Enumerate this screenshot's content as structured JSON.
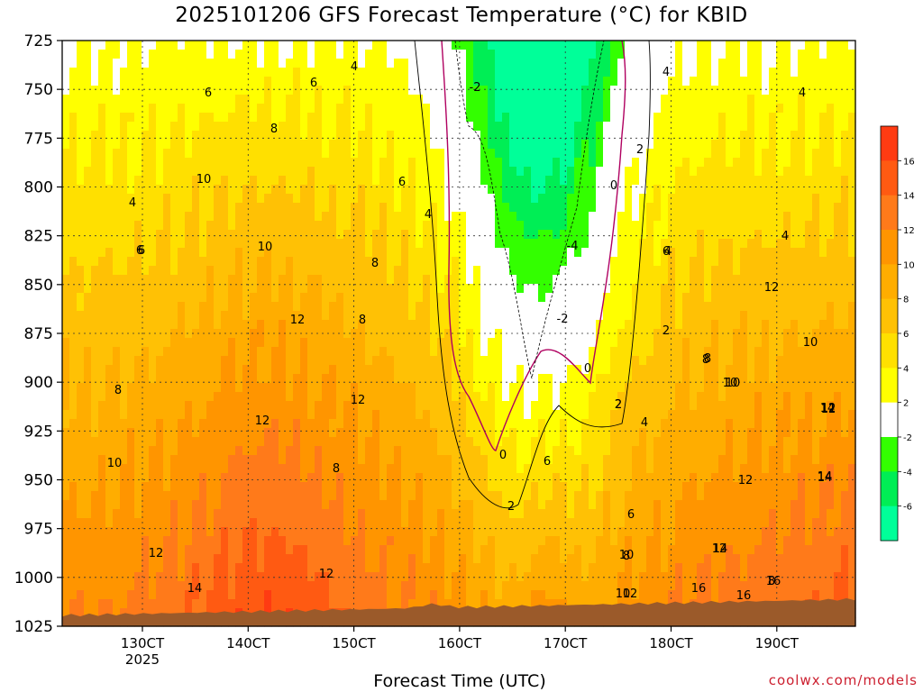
{
  "chart_data": {
    "type": "filled-contour",
    "title": "2025101206 GFS Forecast Temperature (°C) for KBID",
    "xlabel": "Forecast Time (UTC)",
    "ylabel": "",
    "x_ticks": [
      "130CT",
      "140CT",
      "150CT",
      "160CT",
      "170CT",
      "180CT",
      "190CT"
    ],
    "x_year_label": "2025",
    "y_ticks": [
      "725",
      "750",
      "775",
      "800",
      "825",
      "850",
      "875",
      "900",
      "925",
      "950",
      "975",
      "1000",
      "1025"
    ],
    "ylim": [
      725,
      1025
    ],
    "grid": "dotted",
    "colorbar": {
      "labels": [
        "16",
        "14",
        "12",
        "10",
        "8",
        "6",
        "4",
        "2",
        "-2",
        "-4",
        "-6"
      ],
      "levels": [
        18,
        16,
        14,
        12,
        10,
        8,
        6,
        4,
        2,
        -2,
        -4,
        -6,
        -8
      ],
      "colors": [
        "#ff3b12",
        "#ff5a12",
        "#ff7a1a",
        "#ff9500",
        "#ffad00",
        "#ffc105",
        "#ffe000",
        "#ffff00",
        "#ffffff",
        "#33ff00",
        "#00ee55",
        "#00ff99"
      ]
    },
    "contour_labels": [
      "6",
      "6",
      "8",
      "4",
      "6",
      "8",
      "10",
      "8",
      "6",
      "4",
      "12",
      "10",
      "8",
      "12",
      "12",
      "8",
      "10",
      "12",
      "12",
      "14",
      "4",
      "6",
      "4",
      "2",
      "-2",
      "-4",
      "-2",
      "0",
      "0",
      "0",
      "2",
      "2",
      "4",
      "6",
      "8",
      "10",
      "12",
      "14",
      "16",
      "8",
      "10",
      "12",
      "4",
      "6",
      "8",
      "10",
      "12",
      "14",
      "10",
      "12",
      "14",
      "16",
      "12",
      "4",
      "2",
      "4",
      "6",
      "8",
      "10",
      "12",
      "14",
      "16",
      "2"
    ],
    "terrain_color": "#9b5a2a"
  },
  "credit": "coolwx.com/models"
}
